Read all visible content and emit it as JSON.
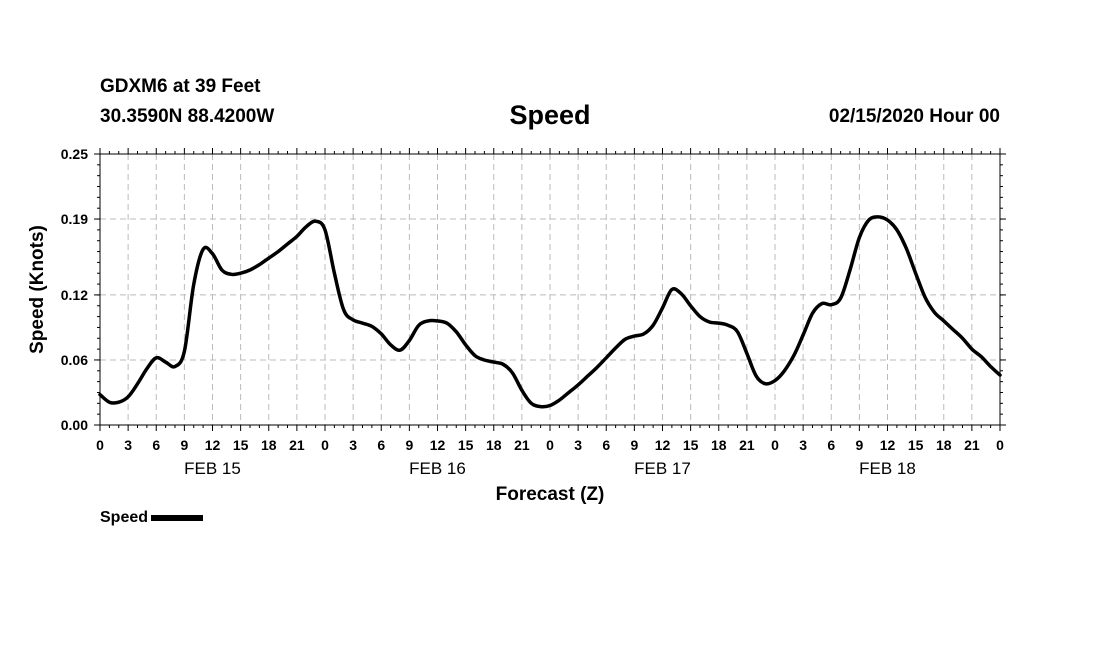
{
  "header": {
    "station": "GDXM6 at 39 Feet",
    "coords": "30.3590N 88.4200W",
    "title": "Speed",
    "datetime": "02/15/2020 Hour 00"
  },
  "legend": {
    "label": "Speed",
    "color": "#000000"
  },
  "chart_data": {
    "type": "line",
    "title": "Speed",
    "xlabel": "Forecast (Z)",
    "ylabel": "Speed (Knots)",
    "x_unit": "hours from 02/15/2020 00Z",
    "xlim": [
      0,
      96
    ],
    "ylim": [
      0,
      0.25
    ],
    "yticks": [
      "0.00",
      "0.06",
      "0.12",
      "0.19",
      "0.25"
    ],
    "xtick_labels": [
      "0",
      "3",
      "6",
      "9",
      "12",
      "15",
      "18",
      "21",
      "0",
      "3",
      "6",
      "9",
      "12",
      "15",
      "18",
      "21",
      "0",
      "3",
      "6",
      "9",
      "12",
      "15",
      "18",
      "21",
      "0",
      "3",
      "6",
      "9",
      "12",
      "15",
      "18",
      "21",
      "0"
    ],
    "day_labels": [
      "FEB 15",
      "FEB 16",
      "FEB 17",
      "FEB 18"
    ],
    "grid": true,
    "legend_position": "bottom-left",
    "series": [
      {
        "name": "Speed",
        "color": "#000000",
        "x": [
          0,
          1,
          2,
          3,
          4,
          5,
          6,
          7,
          8,
          9,
          10,
          11,
          12,
          13,
          14,
          15,
          16,
          17,
          18,
          19,
          20,
          21,
          22,
          23,
          24,
          25,
          26,
          27,
          28,
          29,
          30,
          31,
          32,
          33,
          34,
          35,
          36,
          37,
          38,
          39,
          40,
          41,
          42,
          43,
          44,
          45,
          46,
          47,
          48,
          49,
          50,
          51,
          52,
          53,
          54,
          55,
          56,
          57,
          58,
          59,
          60,
          61,
          62,
          63,
          64,
          65,
          66,
          67,
          68,
          69,
          70,
          71,
          72,
          73,
          74,
          75,
          76,
          77,
          78,
          79,
          80,
          81,
          82,
          83,
          84,
          85,
          86,
          87,
          88,
          89,
          90,
          91,
          92,
          93,
          94,
          95,
          96
        ],
        "y": [
          0.028,
          0.021,
          0.021,
          0.026,
          0.038,
          0.052,
          0.062,
          0.058,
          0.054,
          0.068,
          0.13,
          0.162,
          0.158,
          0.143,
          0.139,
          0.14,
          0.143,
          0.148,
          0.154,
          0.16,
          0.167,
          0.174,
          0.183,
          0.188,
          0.18,
          0.14,
          0.106,
          0.097,
          0.094,
          0.091,
          0.084,
          0.074,
          0.069,
          0.078,
          0.092,
          0.096,
          0.096,
          0.094,
          0.086,
          0.074,
          0.064,
          0.06,
          0.058,
          0.056,
          0.048,
          0.032,
          0.02,
          0.017,
          0.018,
          0.023,
          0.03,
          0.037,
          0.045,
          0.053,
          0.062,
          0.071,
          0.079,
          0.082,
          0.084,
          0.092,
          0.108,
          0.125,
          0.121,
          0.11,
          0.1,
          0.095,
          0.094,
          0.092,
          0.086,
          0.066,
          0.045,
          0.038,
          0.041,
          0.05,
          0.064,
          0.083,
          0.103,
          0.112,
          0.111,
          0.117,
          0.143,
          0.173,
          0.189,
          0.192,
          0.189,
          0.18,
          0.163,
          0.14,
          0.118,
          0.104,
          0.096,
          0.088,
          0.08,
          0.07,
          0.063,
          0.054,
          0.046
        ]
      }
    ]
  }
}
